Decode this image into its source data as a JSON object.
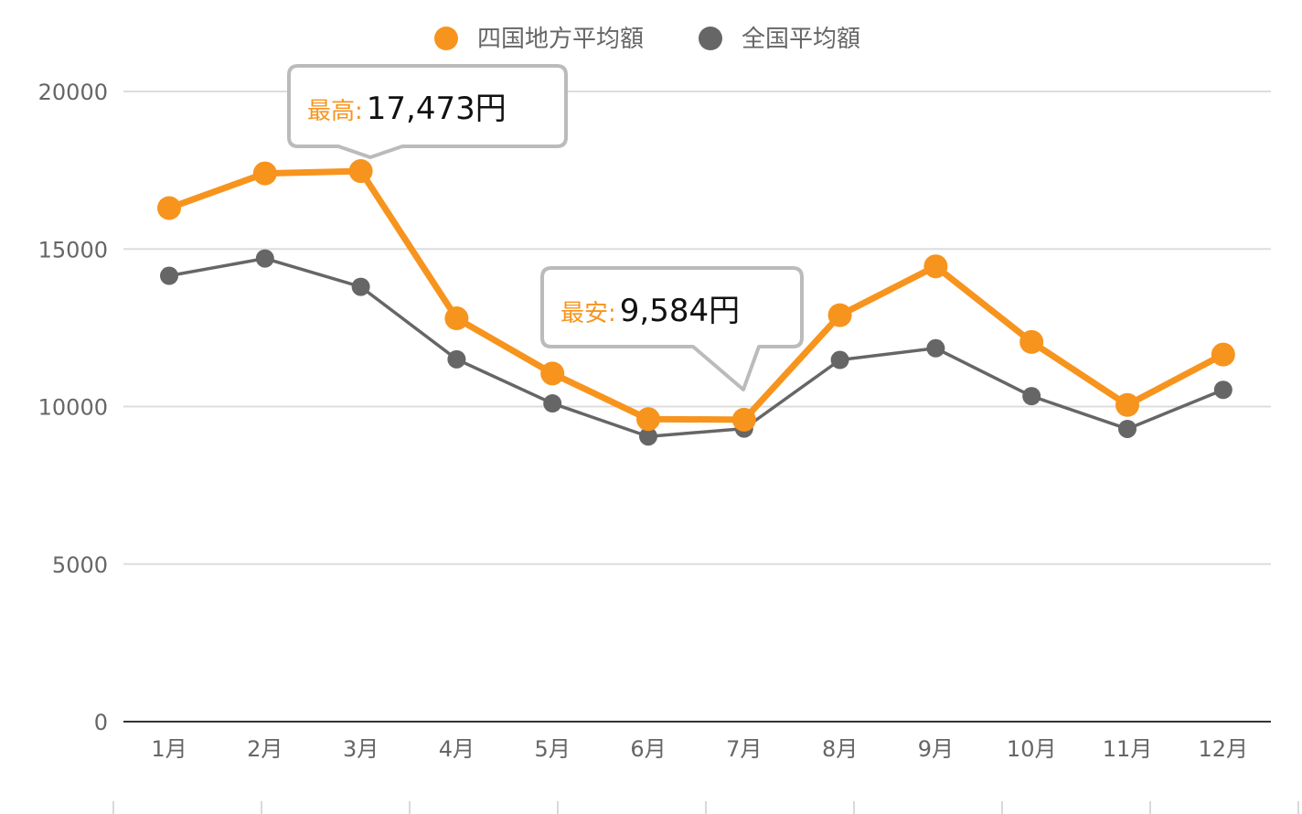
{
  "chart_data": {
    "type": "line",
    "categories": [
      "1月",
      "2月",
      "3月",
      "4月",
      "5月",
      "6月",
      "7月",
      "8月",
      "9月",
      "10月",
      "11月",
      "12月"
    ],
    "series": [
      {
        "name": "四国地方平均額",
        "color": "#f7941d",
        "values": [
          16300,
          17400,
          17473,
          12800,
          11050,
          9600,
          9584,
          12900,
          14450,
          12050,
          10050,
          11650
        ]
      },
      {
        "name": "全国平均額",
        "color": "#666666",
        "values": [
          14150,
          14700,
          13800,
          11500,
          10100,
          9050,
          9300,
          11480,
          11850,
          10330,
          9290,
          10530
        ]
      }
    ],
    "ylim": [
      0,
      20000
    ],
    "yticks": [
      "0",
      "5000",
      "10000",
      "15000",
      "20000"
    ],
    "grid": true,
    "legend_position": "top-center",
    "annotations": [
      {
        "key": "最高:",
        "value": "17,473円",
        "category": "3月",
        "y": 17473
      },
      {
        "key": "最安:",
        "value": "9,584円",
        "category": "7月",
        "y": 9584
      }
    ]
  }
}
